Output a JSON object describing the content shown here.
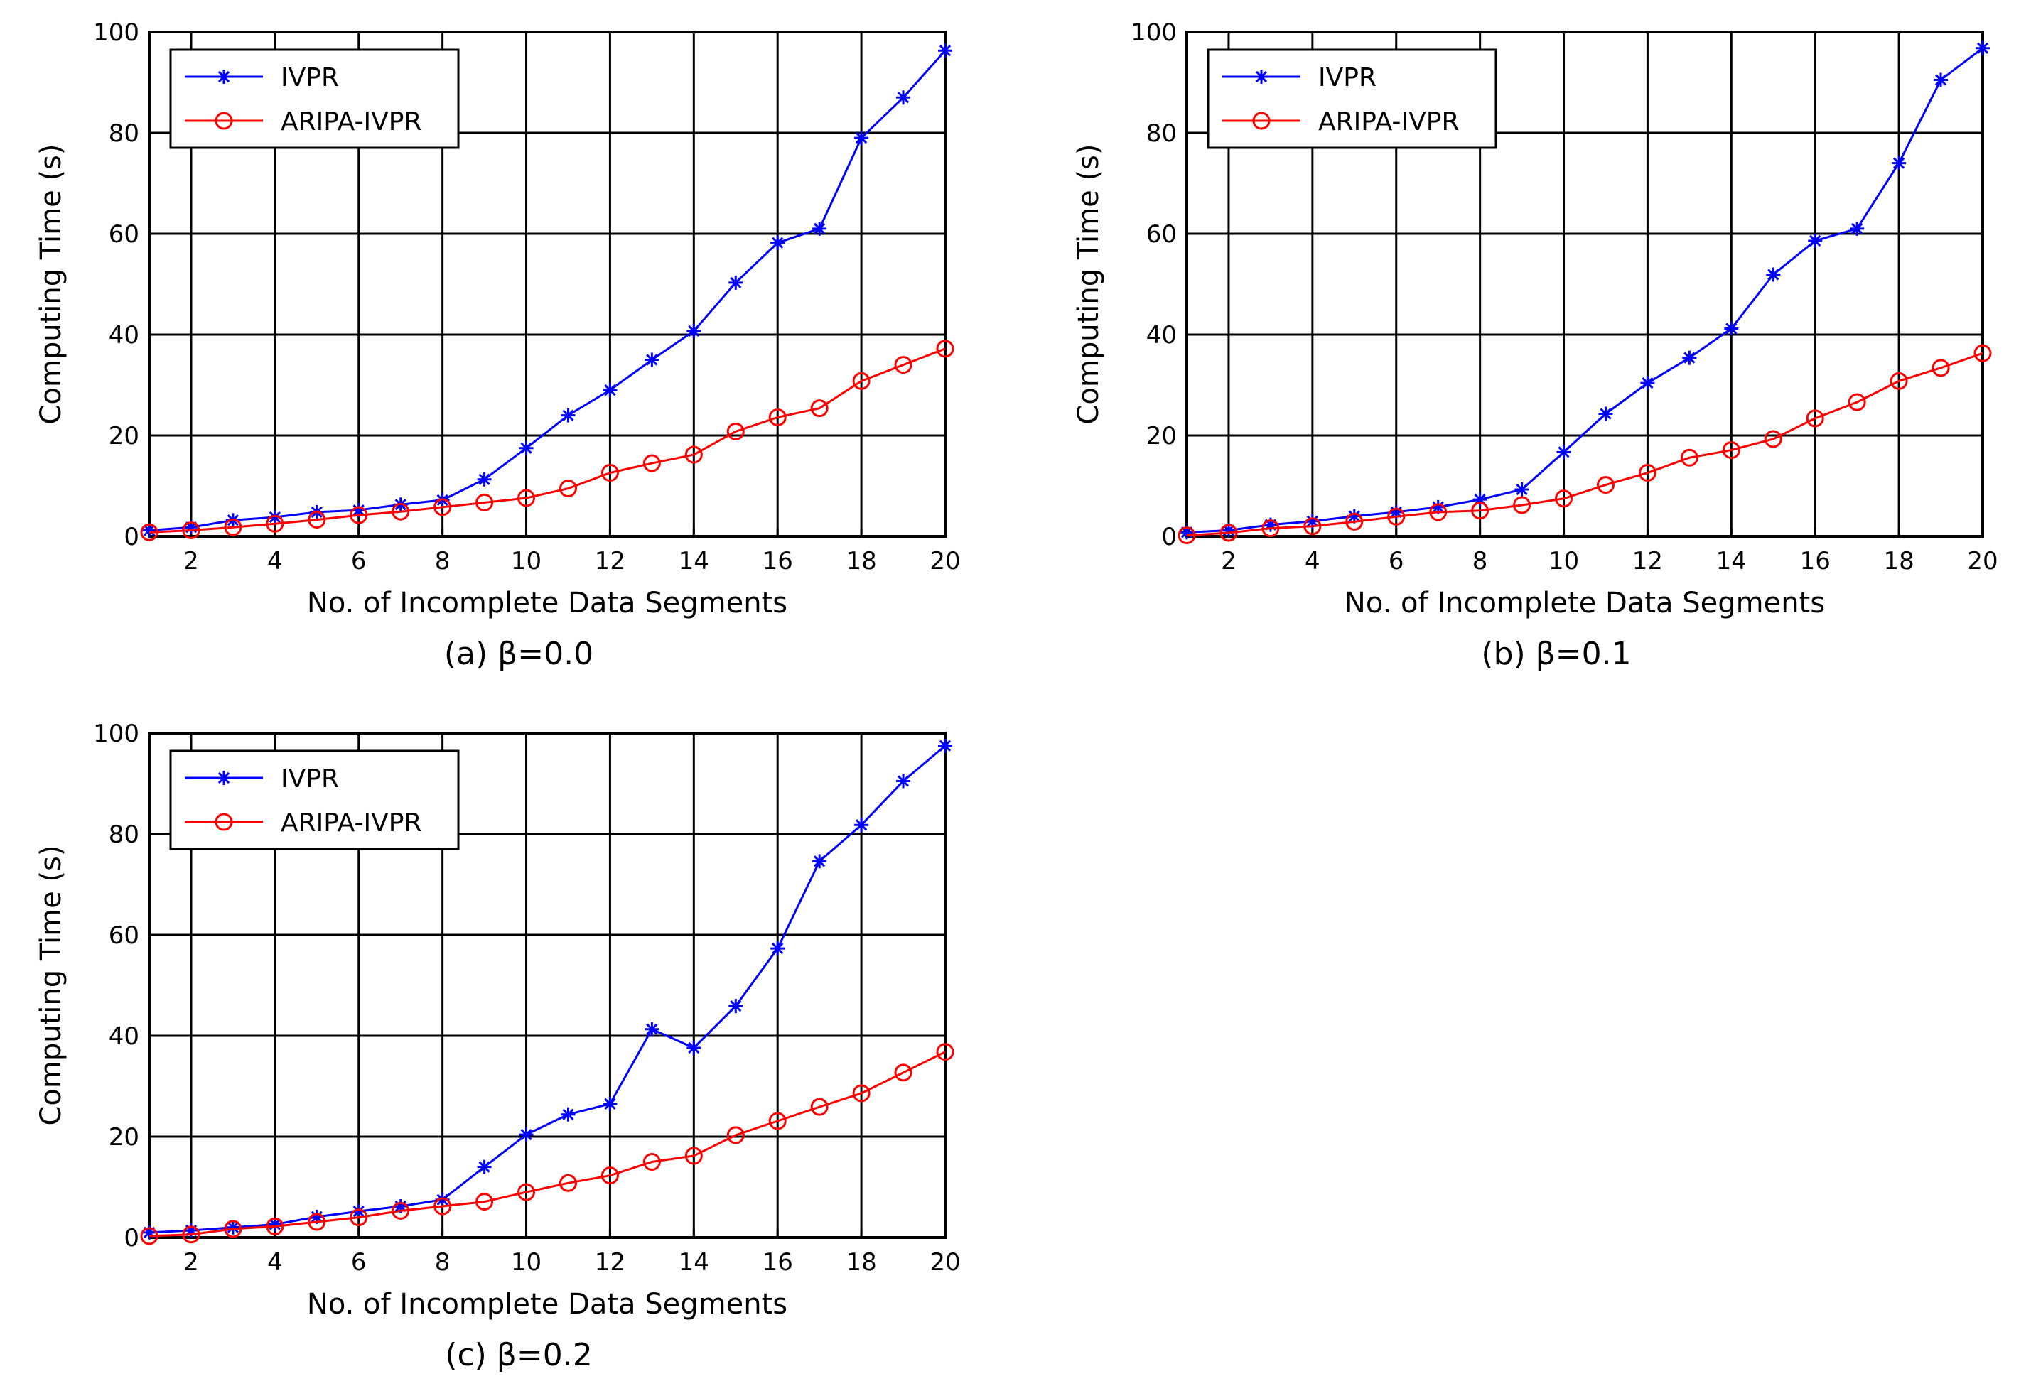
{
  "chart_data": [
    {
      "type": "line",
      "caption": "(a) β=0.0",
      "xlabel": "No. of Incomplete Data Segments",
      "ylabel": "Computing Time (s)",
      "xlim": [
        1,
        20
      ],
      "ylim": [
        0,
        100
      ],
      "xticks": [
        2,
        4,
        6,
        8,
        10,
        12,
        14,
        16,
        18,
        20
      ],
      "yticks": [
        0,
        20,
        40,
        60,
        80,
        100
      ],
      "grid": true,
      "legend_position": "top-left",
      "x": [
        1,
        2,
        3,
        4,
        5,
        6,
        7,
        8,
        9,
        10,
        11,
        12,
        13,
        14,
        15,
        16,
        17,
        18,
        19,
        20
      ],
      "series": [
        {
          "name": "IVPR",
          "color": "#0000ff",
          "marker": "asterisk",
          "values": [
            1.2,
            1.8,
            3.2,
            3.8,
            4.8,
            5.2,
            6.3,
            7.2,
            11.3,
            17.5,
            24,
            29,
            35,
            40.7,
            50.3,
            58.2,
            61,
            79,
            87,
            96.3
          ]
        },
        {
          "name": "ARIPA-IVPR",
          "color": "#ff0000",
          "marker": "circle",
          "values": [
            0.8,
            1.2,
            1.8,
            2.5,
            3.3,
            4.2,
            4.9,
            5.8,
            6.7,
            7.6,
            9.5,
            12.6,
            14.5,
            16.2,
            20.8,
            23.6,
            25.4,
            30.8,
            34,
            37.2
          ]
        }
      ]
    },
    {
      "type": "line",
      "caption": "(b) β=0.1",
      "xlabel": "No. of Incomplete Data Segments",
      "ylabel": "Computing Time (s)",
      "xlim": [
        1,
        20
      ],
      "ylim": [
        0,
        100
      ],
      "xticks": [
        2,
        4,
        6,
        8,
        10,
        12,
        14,
        16,
        18,
        20
      ],
      "yticks": [
        0,
        20,
        40,
        60,
        80,
        100
      ],
      "grid": true,
      "legend_position": "top-left",
      "x": [
        1,
        2,
        3,
        4,
        5,
        6,
        7,
        8,
        9,
        10,
        11,
        12,
        13,
        14,
        15,
        16,
        17,
        18,
        19,
        20
      ],
      "series": [
        {
          "name": "IVPR",
          "color": "#0000ff",
          "marker": "asterisk",
          "values": [
            0.8,
            1.2,
            2.3,
            3.0,
            4.0,
            4.8,
            5.8,
            7.3,
            9.3,
            16.7,
            24.3,
            30.4,
            35.4,
            41.2,
            51.9,
            58.6,
            61,
            74,
            90.5,
            96.8
          ]
        },
        {
          "name": "ARIPA-IVPR",
          "color": "#ff0000",
          "marker": "circle",
          "values": [
            0.2,
            0.7,
            1.6,
            2.0,
            2.9,
            3.9,
            4.8,
            5.1,
            6.2,
            7.5,
            10.2,
            12.6,
            15.6,
            17.1,
            19.3,
            23.4,
            26.6,
            30.8,
            33.4,
            36.3
          ]
        }
      ]
    },
    {
      "type": "line",
      "caption": "(c) β=0.2",
      "xlabel": "No. of Incomplete Data Segments",
      "ylabel": "Computing Time (s)",
      "xlim": [
        1,
        20
      ],
      "ylim": [
        0,
        100
      ],
      "xticks": [
        2,
        4,
        6,
        8,
        10,
        12,
        14,
        16,
        18,
        20
      ],
      "yticks": [
        0,
        20,
        40,
        60,
        80,
        100
      ],
      "grid": true,
      "legend_position": "top-left",
      "x": [
        1,
        2,
        3,
        4,
        5,
        6,
        7,
        8,
        9,
        10,
        11,
        12,
        13,
        14,
        15,
        16,
        17,
        18,
        19,
        20
      ],
      "series": [
        {
          "name": "IVPR",
          "color": "#0000ff",
          "marker": "asterisk",
          "values": [
            1.0,
            1.4,
            2.0,
            2.6,
            4.1,
            5.2,
            6.2,
            7.5,
            14,
            20.4,
            24.4,
            26.5,
            41.3,
            37.6,
            45.9,
            57.3,
            74.6,
            81.8,
            90.5,
            97.5
          ]
        },
        {
          "name": "ARIPA-IVPR",
          "color": "#ff0000",
          "marker": "circle",
          "values": [
            0.3,
            0.6,
            1.7,
            2.2,
            3.1,
            4.0,
            5.3,
            6.2,
            7.1,
            9.0,
            10.8,
            12.3,
            15.0,
            16.2,
            20.3,
            23.1,
            25.9,
            28.6,
            32.7,
            36.8
          ]
        }
      ]
    }
  ]
}
